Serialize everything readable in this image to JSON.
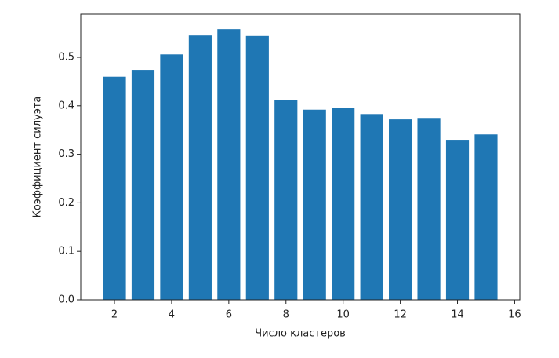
{
  "chart_data": {
    "type": "bar",
    "xlabel": "Число кластеров",
    "ylabel": "Коэффициент силуэта",
    "x": [
      2,
      3,
      4,
      5,
      6,
      7,
      8,
      9,
      10,
      11,
      12,
      13,
      14,
      15
    ],
    "values": [
      0.46,
      0.474,
      0.506,
      0.545,
      0.558,
      0.544,
      0.411,
      0.392,
      0.395,
      0.383,
      0.372,
      0.375,
      0.33,
      0.341
    ],
    "color": "#1f77b4",
    "bar_width": 0.8,
    "xlim": [
      0.82,
      16.18
    ],
    "xticks": [
      2,
      4,
      6,
      8,
      10,
      12,
      14,
      16
    ],
    "ylim": [
      0,
      0.589
    ],
    "yticks": [
      {
        "value": 0,
        "label": "0.0"
      },
      0.1,
      0.2,
      0.3,
      0.4,
      0.5
    ]
  }
}
